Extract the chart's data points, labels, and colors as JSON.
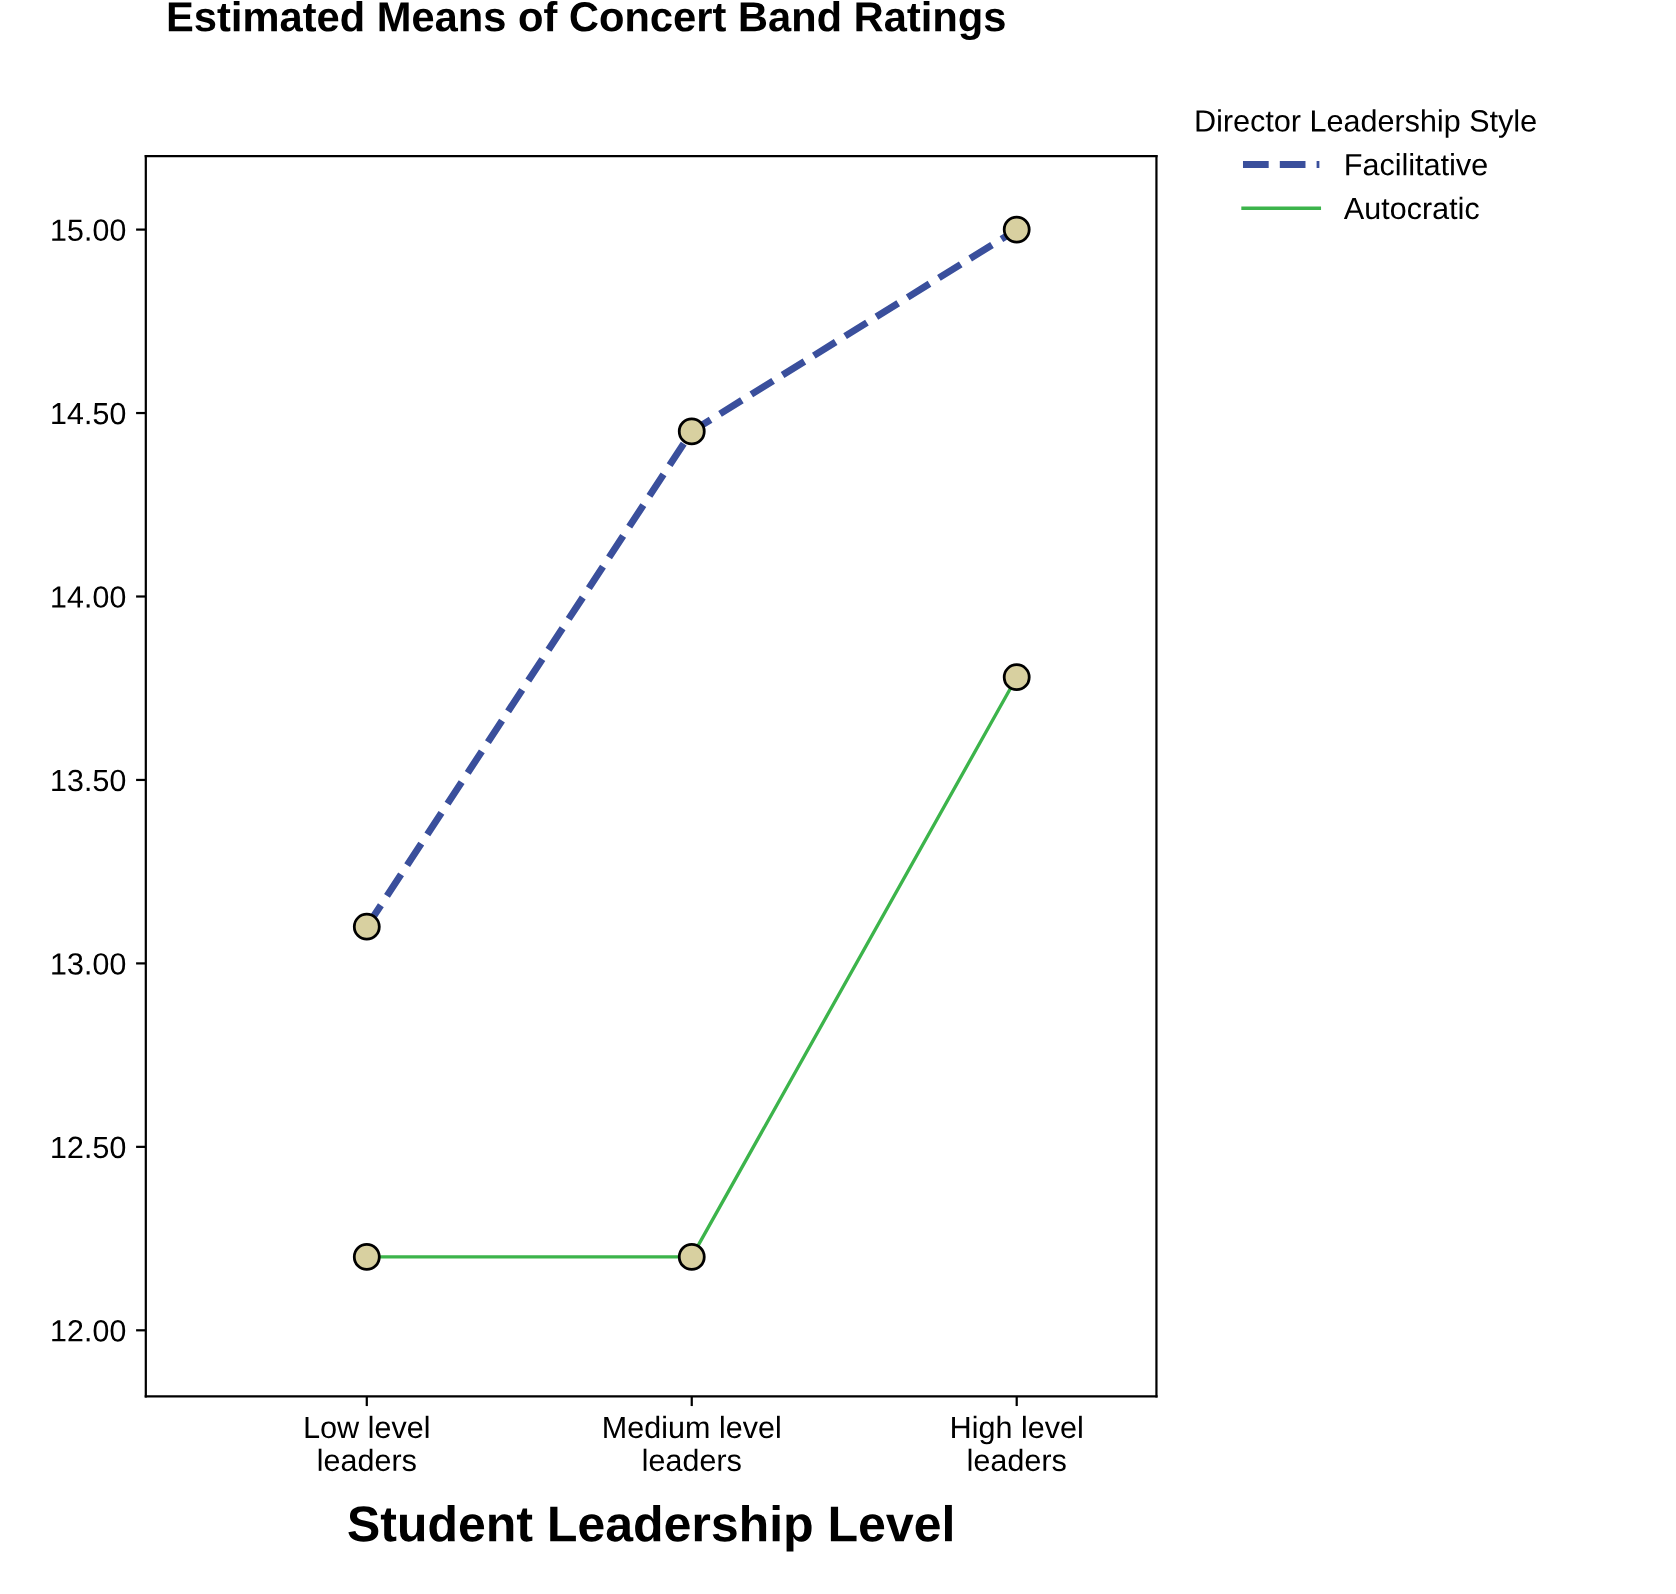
{
  "chart_data": {
    "type": "line",
    "title": "Estimated Means of Concert Band Ratings",
    "xlabel": "Student Leadership Level",
    "legend_title": "Director Leadership Style",
    "categories": [
      "Low level\nleaders",
      "Medium level\nleaders",
      "High level\nleaders"
    ],
    "series": [
      {
        "name": "Facilitative",
        "color": "#3a4f9c",
        "line_style": "dashed",
        "values": [
          13.1,
          14.45,
          15.0
        ]
      },
      {
        "name": "Autocratic",
        "color": "#3cb44b",
        "line_style": "solid",
        "values": [
          12.2,
          12.2,
          13.78
        ]
      }
    ],
    "ylim": [
      11.82,
      15.2
    ],
    "yticks": [
      {
        "value": 12,
        "label": "12.00"
      },
      {
        "value": 12.5,
        "label": "12.50"
      },
      {
        "value": 13,
        "label": "13.00"
      },
      {
        "value": 13.5,
        "label": "13.50"
      },
      {
        "value": 14,
        "label": "14.00"
      },
      {
        "value": 14.5,
        "label": "14.50"
      },
      {
        "value": 15,
        "label": "15.00"
      }
    ],
    "marker": "circle",
    "grid": false,
    "legend": "top right"
  }
}
